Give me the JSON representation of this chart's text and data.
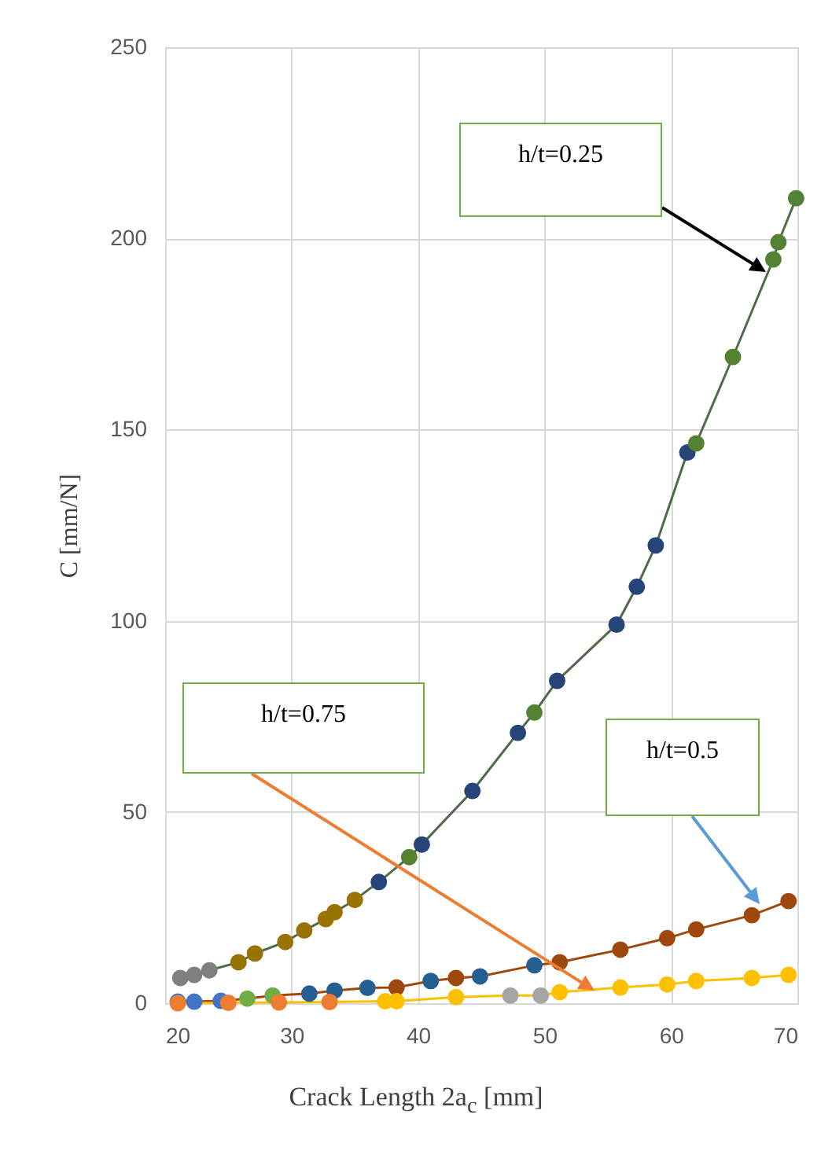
{
  "chart_data": {
    "type": "line",
    "xlabel": "Crack Length 2a$_{c}$  [mm]",
    "ylabel": "C  [mm/N]",
    "xlim": [
      20,
      70
    ],
    "xticks": [
      20,
      30,
      40,
      50,
      60,
      70
    ],
    "ylim": [
      0,
      250
    ],
    "yticks": [
      0,
      50,
      100,
      150,
      200,
      250
    ],
    "grid": true,
    "marker": "circle",
    "line_style": "solid",
    "annotations": [
      "h/t=0.25",
      "h/t=0.5",
      "h/t=0.75"
    ],
    "series": [
      {
        "color": "#4f6b48",
        "x": [
          21.2,
          22.3,
          23.5,
          25.8,
          27.1,
          29.5,
          31,
          32.7,
          33.4,
          35,
          36.9,
          39.3,
          40.3,
          44.3,
          47.9,
          49.2,
          51,
          55.7,
          57.3,
          58.8,
          61.3,
          62,
          64.9,
          68.1,
          68.5,
          69.9
        ],
        "values": [
          6.6,
          7.4,
          8.6,
          10.7,
          13,
          16,
          19,
          22,
          23.8,
          27,
          31.7,
          38.2,
          41.5,
          55.5,
          70.7,
          76,
          84.3,
          99,
          108.9,
          119.7,
          144,
          146.4,
          169,
          194.5,
          199,
          210.5
        ],
        "colors": [
          "#7f7f7f",
          "#7f7f7f",
          "#7f7f7f",
          "#997300",
          "#997300",
          "#997300",
          "#997300",
          "#997300",
          "#997300",
          "#997300",
          "#264478",
          "#548235",
          "#264478",
          "#264478",
          "#264478",
          "#548235",
          "#264478",
          "#264478",
          "#264478",
          "#264478",
          "#264478",
          "#548235",
          "#548235",
          "#548235",
          "#548235",
          "#548235"
        ]
      },
      {
        "color": "#9e480e",
        "x": [
          21,
          22.3,
          24.4,
          26.5,
          28.5,
          31.4,
          33.4,
          36,
          38.3,
          41,
          43,
          44.9,
          49.2,
          51.2,
          56,
          59.7,
          62,
          66.4,
          69.3
        ],
        "values": [
          0.4,
          0.4,
          0.6,
          1.2,
          2,
          2.5,
          3.3,
          4,
          4.1,
          5.8,
          6.6,
          7,
          9.9,
          10.7,
          14,
          17,
          19.3,
          23,
          26.7
        ],
        "colors": [
          "#4472c4",
          "#4472c4",
          "#4472c4",
          "#70ad47",
          "#70ad47",
          "#255e91",
          "#255e91",
          "#255e91",
          "#9e480e",
          "#255e91",
          "#9e480e",
          "#255e91",
          "#255e91",
          "#9e480e",
          "#9e480e",
          "#9e480e",
          "#9e480e",
          "#9e480e",
          "#9e480e"
        ]
      },
      {
        "color": "#ffc000",
        "x": [
          21,
          25,
          29,
          33,
          37.4,
          38.3,
          43,
          47.3,
          49.7,
          51.2,
          56,
          59.7,
          62,
          66.4,
          69.3
        ],
        "values": [
          0,
          0.1,
          0.2,
          0.3,
          0.5,
          0.5,
          1.6,
          2,
          2,
          2.9,
          4.1,
          4.9,
          5.8,
          6.6,
          7.4
        ],
        "colors": [
          "#ed7d31",
          "#ed7d31",
          "#ed7d31",
          "#ed7d31",
          "#ffc000",
          "#ffc000",
          "#ffc000",
          "#a5a5a5",
          "#a5a5a5",
          "#ffc000",
          "#ffc000",
          "#ffc000",
          "#ffc000",
          "#ffc000",
          "#ffc000"
        ]
      }
    ]
  }
}
